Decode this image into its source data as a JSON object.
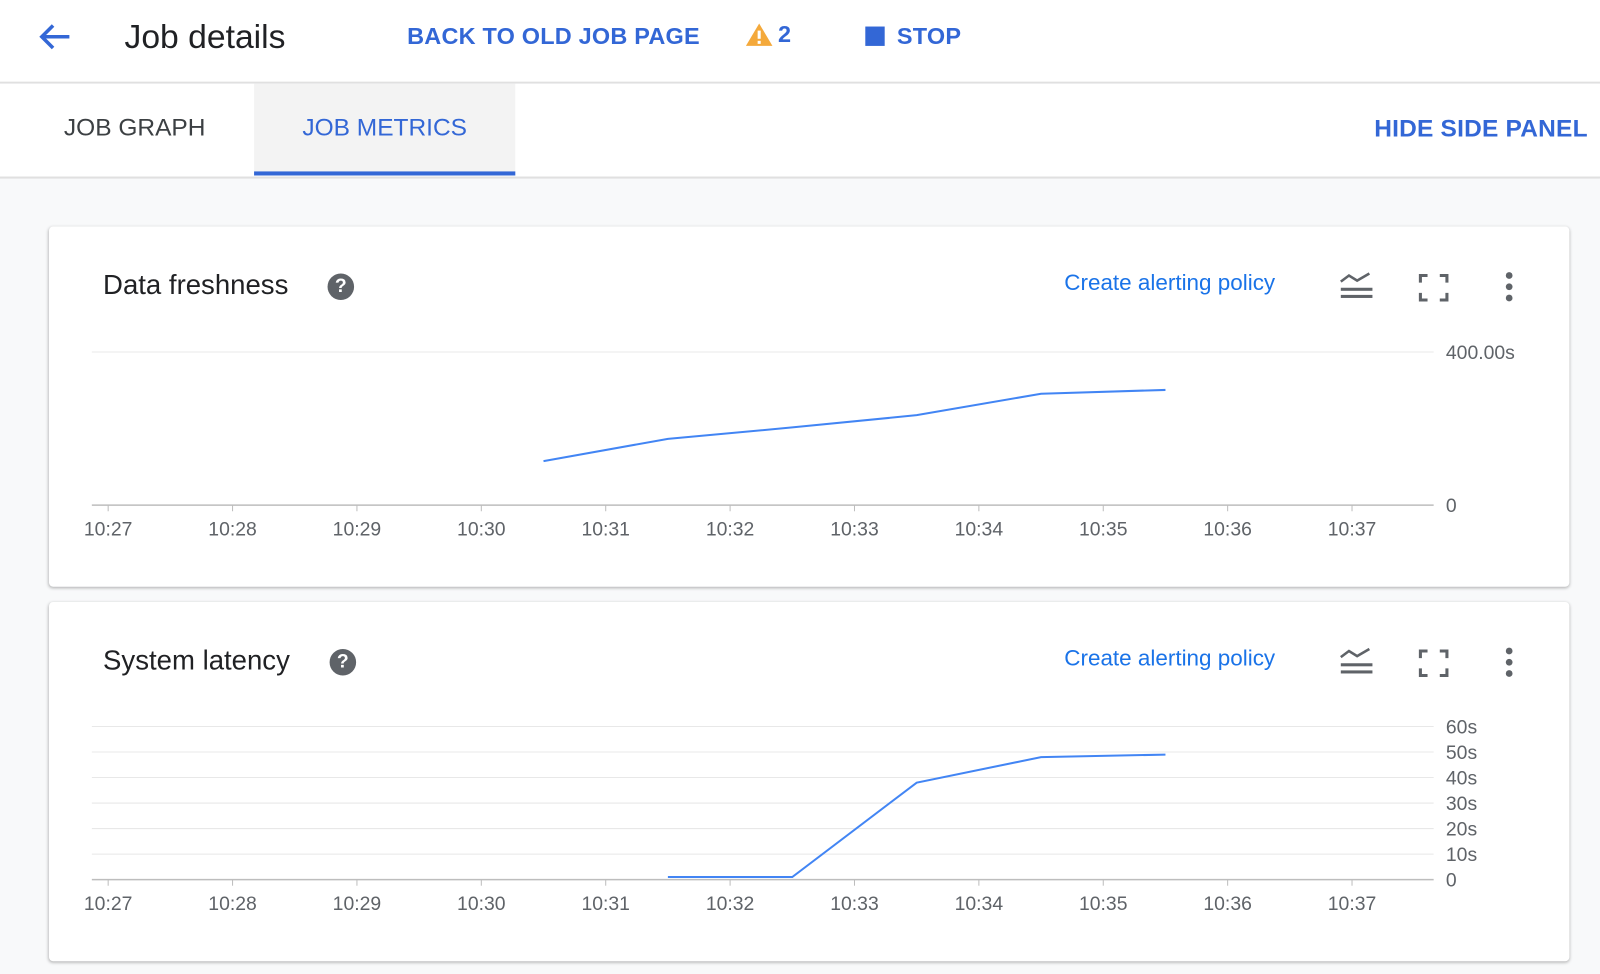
{
  "header": {
    "title": "Job details",
    "back_old": "BACK TO OLD JOB PAGE",
    "warning_count": "2",
    "stop": "STOP"
  },
  "tabs": [
    {
      "label": "JOB GRAPH",
      "active": false
    },
    {
      "label": "JOB METRICS",
      "active": true
    }
  ],
  "hide_panel": "HIDE SIDE PANEL",
  "colors": {
    "accent": "#3367d6",
    "line": "#4285f4",
    "warning": "#f4a93b"
  },
  "chart_data": [
    {
      "type": "line",
      "title": "Data freshness",
      "action": "Create alerting policy",
      "x_ticks": [
        "10:27",
        "10:28",
        "10:29",
        "10:30",
        "10:31",
        "10:32",
        "10:33",
        "10:34",
        "10:35",
        "10:36",
        "10:37"
      ],
      "y_ticks": [
        {
          "v": 0,
          "label": "0"
        },
        {
          "v": 400,
          "label": "400.00s"
        }
      ],
      "ylim": [
        0,
        400
      ],
      "grid": true,
      "x": [
        "10:30:30",
        "10:31:30",
        "10:32:30",
        "10:33:30",
        "10:34:30",
        "10:35:30"
      ],
      "values": [
        115,
        173,
        203,
        235,
        291,
        301
      ]
    },
    {
      "type": "line",
      "title": "System latency",
      "action": "Create alerting policy",
      "x_ticks": [
        "10:27",
        "10:28",
        "10:29",
        "10:30",
        "10:31",
        "10:32",
        "10:33",
        "10:34",
        "10:35",
        "10:36",
        "10:37"
      ],
      "y_ticks": [
        {
          "v": 0,
          "label": "0"
        },
        {
          "v": 10,
          "label": "10s"
        },
        {
          "v": 20,
          "label": "20s"
        },
        {
          "v": 30,
          "label": "30s"
        },
        {
          "v": 40,
          "label": "40s"
        },
        {
          "v": 50,
          "label": "50s"
        },
        {
          "v": 60,
          "label": "60s"
        }
      ],
      "ylim": [
        0,
        60
      ],
      "grid": true,
      "x": [
        "10:31:30",
        "10:32:30",
        "10:33:30",
        "10:34:30",
        "10:35:30"
      ],
      "values": [
        1,
        1,
        38,
        48,
        49
      ]
    }
  ]
}
